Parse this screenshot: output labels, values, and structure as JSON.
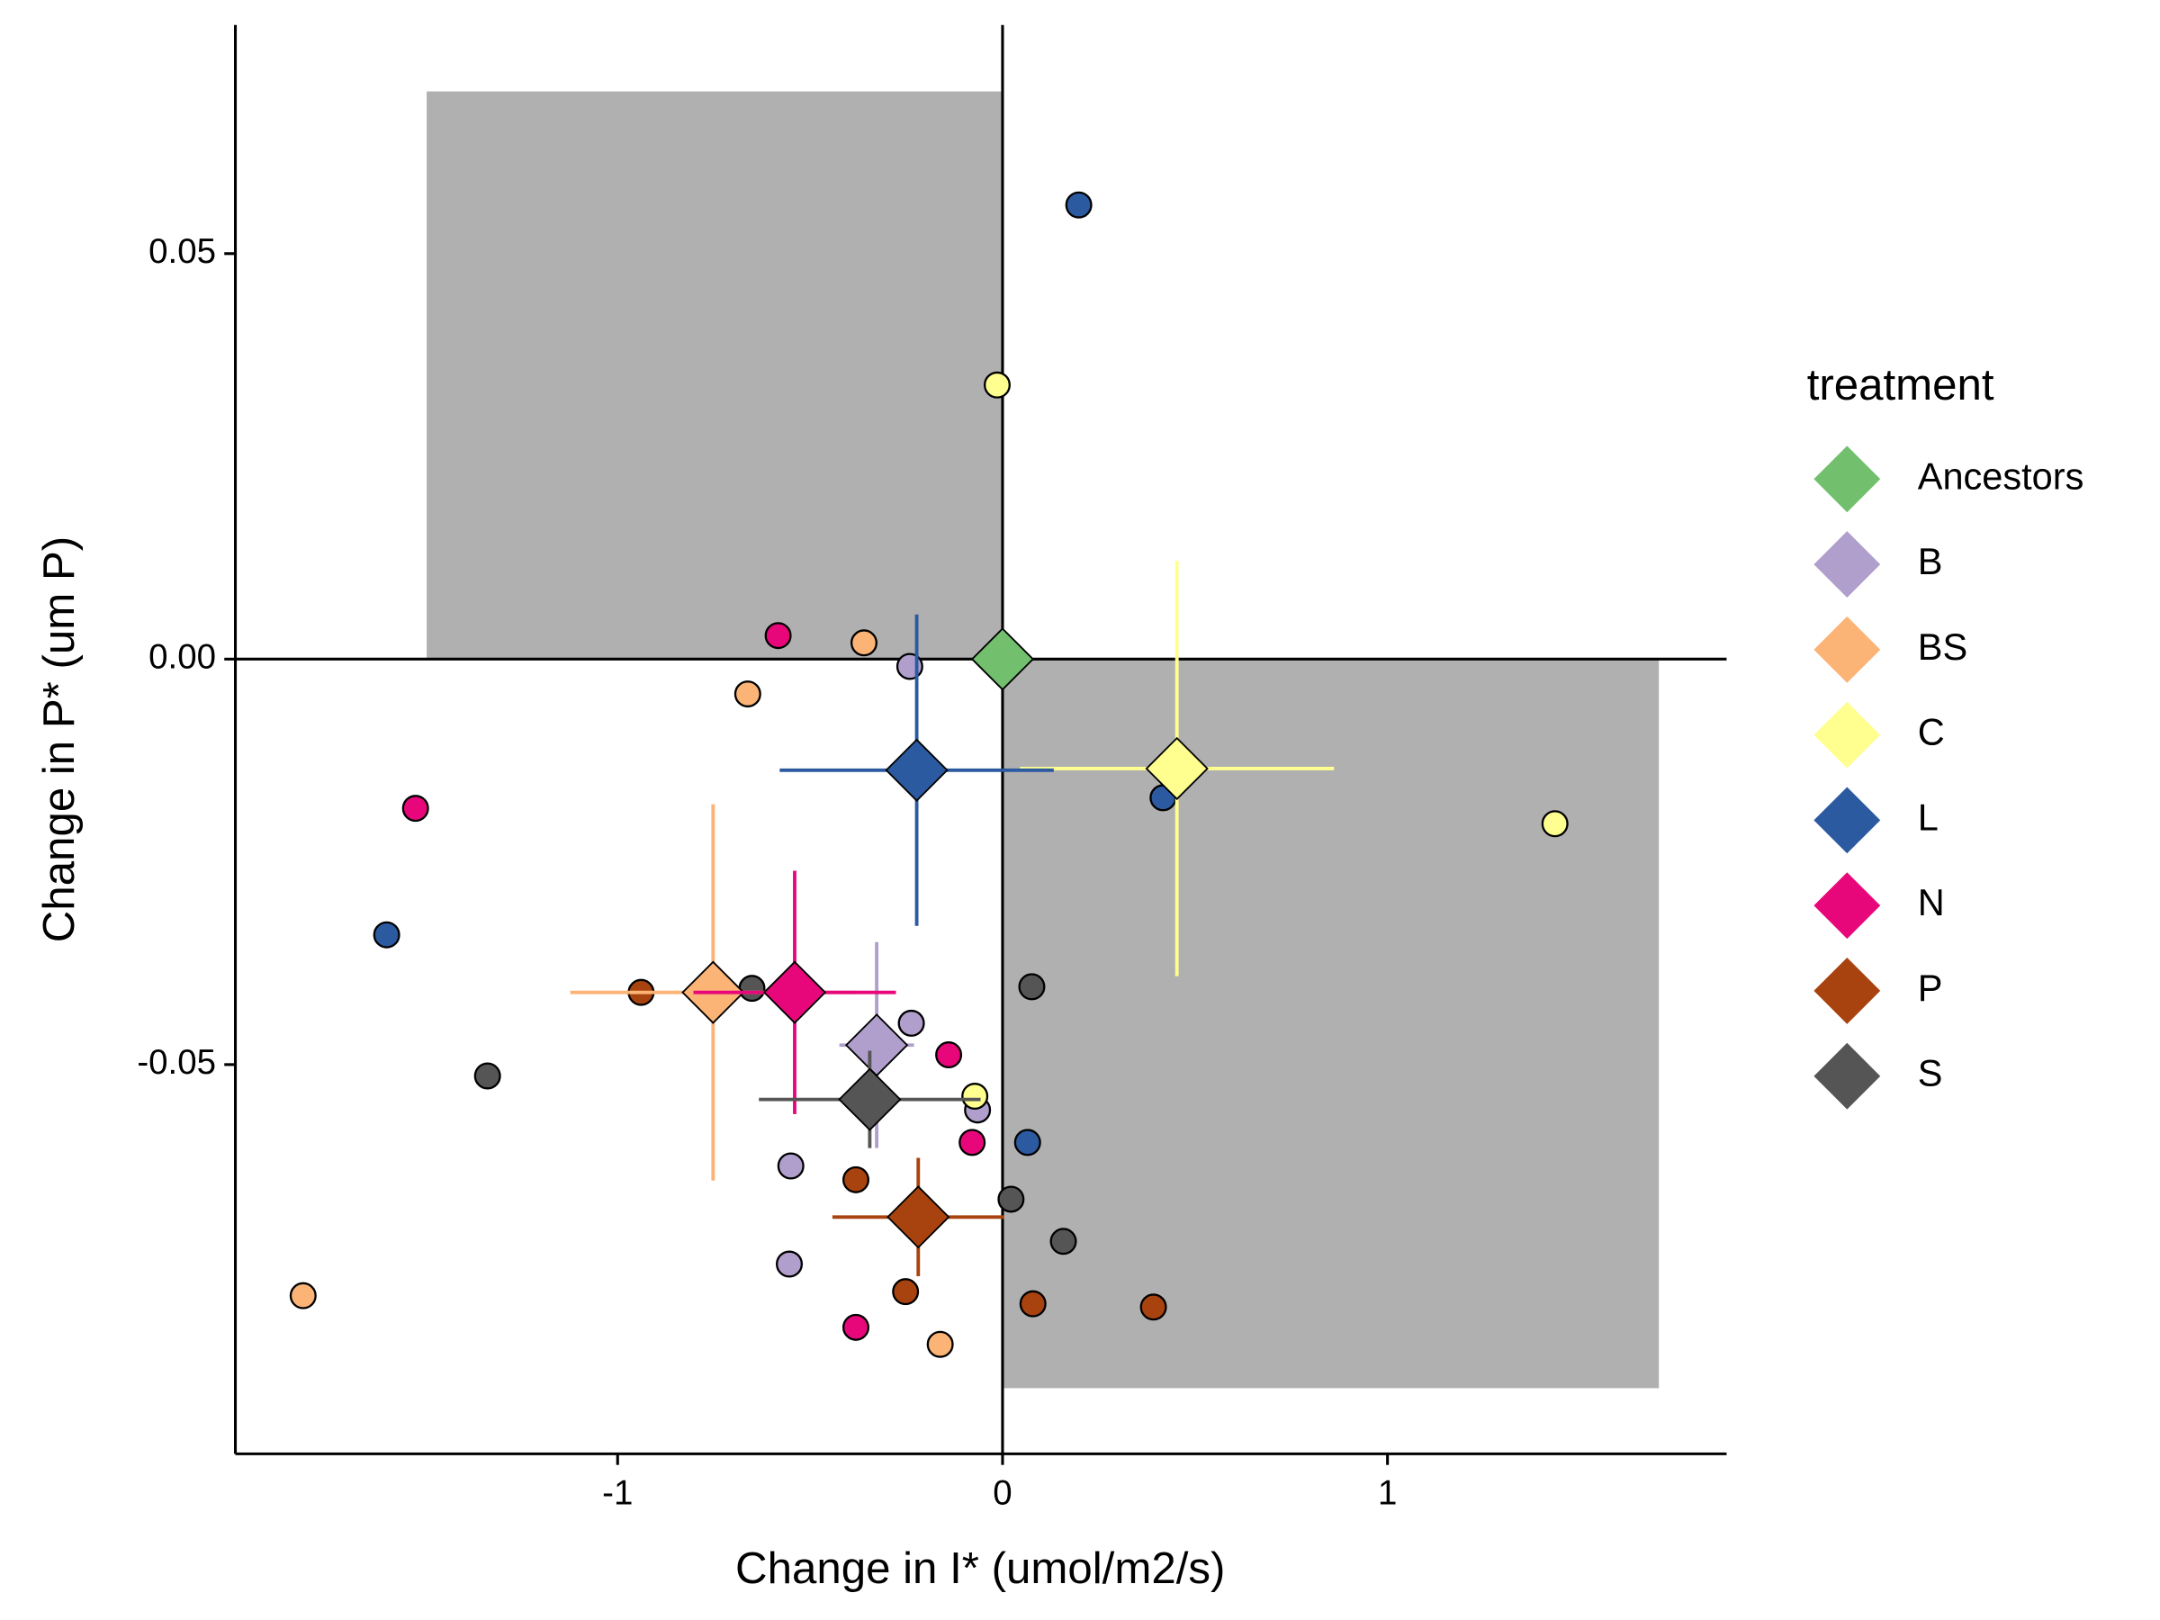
{
  "chart_data": {
    "type": "scatter",
    "x_label": "Change in I* (umol/m2/s)",
    "y_label": "Change in P* (um P)",
    "legend_title": "treatment",
    "legend_position": "right",
    "xlim": [
      -1.993,
      1.881
    ],
    "ylim": [
      -0.098,
      0.0782
    ],
    "xticks": [
      -1,
      0,
      1
    ],
    "yticks": [
      {
        "value": 0.05,
        "label": "0.05"
      },
      {
        "value": 0,
        "label": "0.00"
      },
      {
        "value": -0.05,
        "label": "-0.05"
      }
    ],
    "reference_lines": {
      "x": 0,
      "y": 0
    },
    "shaded_regions": [
      {
        "xlim": [
          -1.496,
          0
        ],
        "ylim": [
          0,
          0.07
        ]
      },
      {
        "xlim": [
          0,
          1.705
        ],
        "ylim": [
          -0.0899,
          0
        ]
      }
    ],
    "series": [
      {
        "name": "Ancestors",
        "color": "#72bf6e",
        "x": [
          0
        ],
        "values": [
          0
        ],
        "mean": {
          "x": 0,
          "y": 0,
          "x_err": 0,
          "y_err": 0
        }
      },
      {
        "name": "B",
        "color": "#b09fcc",
        "x": [
          -0.241,
          -0.237,
          -0.065,
          -0.55,
          -0.554
        ],
        "values": [
          -0.0009,
          -0.0449,
          -0.0556,
          -0.0625,
          -0.0746
        ],
        "mean": {
          "x": -0.327,
          "y": -0.0476,
          "x_err": 0.097,
          "y_err": 0.0127
        }
      },
      {
        "name": "BS",
        "color": "#fbb376",
        "x": [
          -0.36,
          -0.662,
          -1.817,
          -0.162
        ],
        "values": [
          0.002,
          -0.0043,
          -0.0785,
          -0.0845
        ],
        "mean": {
          "x": -0.752,
          "y": -0.0411,
          "x_err": 0.371,
          "y_err": 0.0232
        }
      },
      {
        "name": "C",
        "color": "#ffff8f",
        "x": [
          -0.014,
          1.435,
          -0.072
        ],
        "values": [
          0.0338,
          -0.0203,
          -0.0539
        ],
        "mean": {
          "x": 0.453,
          "y": -0.0135,
          "x_err": 0.408,
          "y_err": 0.0256
        }
      },
      {
        "name": "L",
        "color": "#2c5aa0",
        "x": [
          0.198,
          0.417,
          -1.6,
          0.065
        ],
        "values": [
          0.056,
          -0.0171,
          -0.034,
          -0.0596
        ],
        "mean": {
          "x": -0.223,
          "y": -0.0137,
          "x_err": 0.356,
          "y_err": 0.0192
        }
      },
      {
        "name": "N",
        "color": "#e8077a",
        "x": [
          -0.583,
          -1.525,
          -0.14,
          -0.079,
          -0.381
        ],
        "values": [
          0.0029,
          -0.0184,
          -0.0488,
          -0.0596,
          -0.0824
        ],
        "mean": {
          "x": -0.54,
          "y": -0.0411,
          "x_err": 0.263,
          "y_err": 0.015
        }
      },
      {
        "name": "P",
        "color": "#a8430f",
        "x": [
          -0.939,
          -0.381,
          -0.252,
          0.079,
          0.392
        ],
        "values": [
          -0.0411,
          -0.0642,
          -0.078,
          -0.0795,
          -0.0799
        ],
        "mean": {
          "x": -0.219,
          "y": -0.0688,
          "x_err": 0.223,
          "y_err": 0.0073
        }
      },
      {
        "name": "S",
        "color": "#555555",
        "x": [
          -0.651,
          -1.338,
          0.076,
          0.022,
          0.158
        ],
        "values": [
          -0.0406,
          -0.0514,
          -0.0404,
          -0.0666,
          -0.0718
        ],
        "mean": {
          "x": -0.345,
          "y": -0.0543,
          "x_err": 0.288,
          "y_err": 0.006
        }
      }
    ]
  }
}
